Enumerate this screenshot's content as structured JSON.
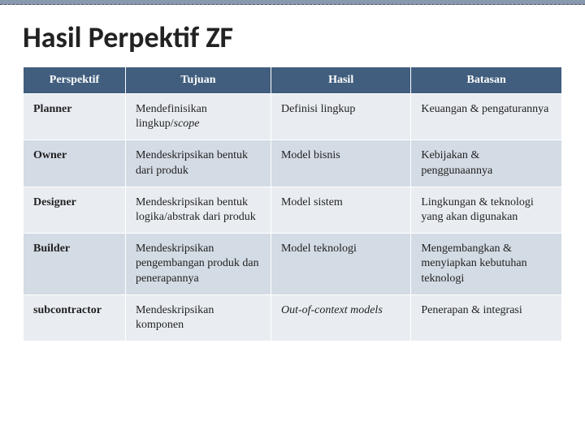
{
  "title": "Hasil Perpektif ZF",
  "table": {
    "type": "table",
    "header_bg": "#415e7e",
    "header_color": "#ffffff",
    "row_light_bg": "#e9edf2",
    "row_dark_bg": "#d3dbe4",
    "title_fontsize": 36,
    "cell_fontsize": 14,
    "columns": [
      "Perspektif",
      "Tujuan",
      "Hasil",
      "Batasan"
    ],
    "col_widths": [
      "19%",
      "27%",
      "26%",
      "28%"
    ],
    "rows": [
      {
        "perspektif": "Planner",
        "tujuan_html": "Mendefinisikan lingkup/<em>scope</em>",
        "hasil_html": "Definisi lingkup",
        "batasan_html": "Keuangan & pengaturannya"
      },
      {
        "perspektif": "Owner",
        "tujuan_html": "Mendeskripsikan bentuk dari produk",
        "hasil_html": "Model bisnis",
        "batasan_html": "Kebijakan & penggunaannya"
      },
      {
        "perspektif": "Designer",
        "tujuan_html": "Mendeskripsikan bentuk logika/abstrak dari produk",
        "hasil_html": "Model sistem",
        "batasan_html": "Lingkungan & teknologi yang akan digunakan"
      },
      {
        "perspektif": "Builder",
        "tujuan_html": "Mendeskripsikan pengembangan produk dan penerapannya",
        "hasil_html": "Model teknologi",
        "batasan_html": "Mengembangkan & menyiapkan kebutuhan teknologi"
      },
      {
        "perspektif": "subcontractor",
        "tujuan_html": "Mendeskripsikan komponen",
        "hasil_html": "<em>Out-of-context models</em>",
        "batasan_html": "Penerapan & integrasi"
      }
    ]
  }
}
